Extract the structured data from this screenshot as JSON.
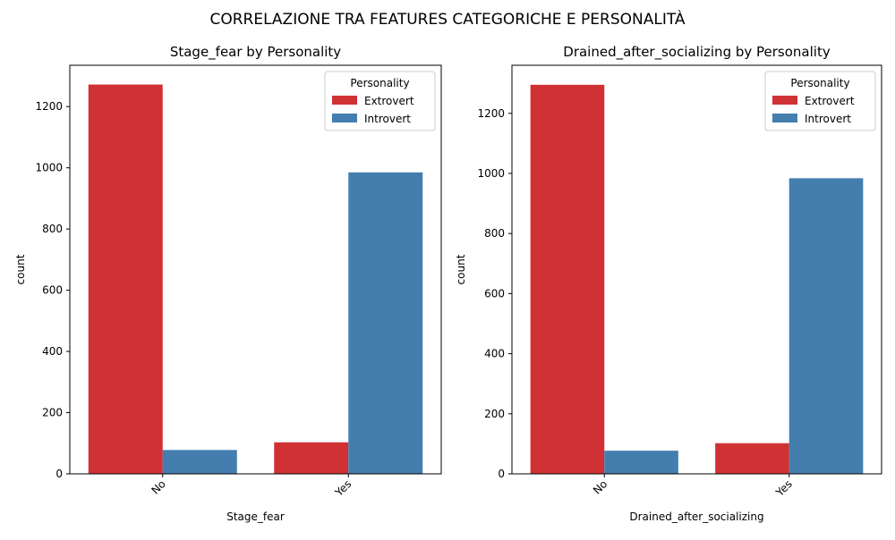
{
  "suptitle": "CORRELAZIONE TRA FEATURES CATEGORICHE E PERSONALITÀ",
  "colors": {
    "Extrovert": "#d03135",
    "Introvert": "#447eaf"
  },
  "chart_data": [
    {
      "type": "bar",
      "title": "Stage_fear by Personality",
      "xlabel": "Stage_fear",
      "ylabel": "count",
      "categories": [
        "No",
        "Yes"
      ],
      "ylim": [
        0,
        1335
      ],
      "yticks": [
        0,
        200,
        400,
        600,
        800,
        1000,
        1200
      ],
      "legend": {
        "title": "Personality",
        "placement": "top-right"
      },
      "series": [
        {
          "name": "Extrovert",
          "values": [
            1272,
            103
          ]
        },
        {
          "name": "Introvert",
          "values": [
            78,
            985
          ]
        }
      ]
    },
    {
      "type": "bar",
      "title": "Drained_after_socializing by Personality",
      "xlabel": "Drained_after_socializing",
      "ylabel": "count",
      "categories": [
        "No",
        "Yes"
      ],
      "ylim": [
        0,
        1360
      ],
      "yticks": [
        0,
        200,
        400,
        600,
        800,
        1000,
        1200
      ],
      "legend": {
        "title": "Personality",
        "placement": "top-right"
      },
      "series": [
        {
          "name": "Extrovert",
          "values": [
            1295,
            102
          ]
        },
        {
          "name": "Introvert",
          "values": [
            77,
            984
          ]
        }
      ]
    }
  ]
}
